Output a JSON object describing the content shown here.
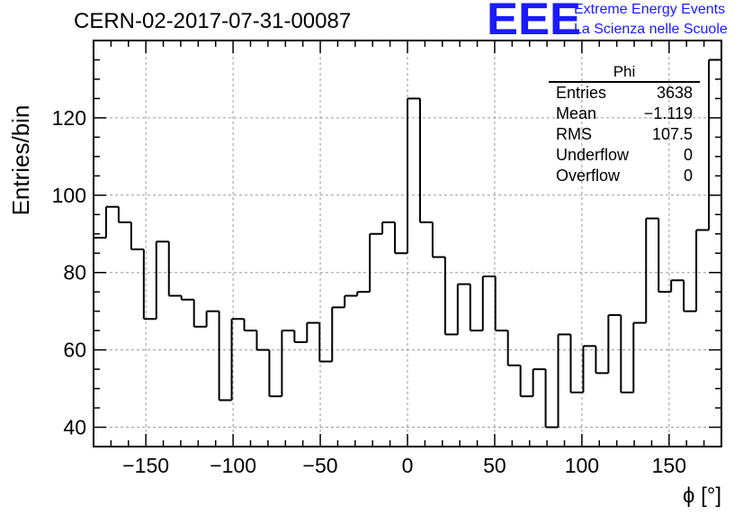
{
  "header": {
    "run_id": "CERN-02-2017-07-31-00087",
    "logo_text": "EEE",
    "logo_line1": "Extreme Energy Events",
    "logo_line2": "La Scienza nelle Scuole"
  },
  "stats": {
    "title": "Phi",
    "rows": [
      {
        "label": "Entries",
        "value": "3638"
      },
      {
        "label": "Mean",
        "value": "−1.119"
      },
      {
        "label": "RMS",
        "value": "107.5"
      },
      {
        "label": "Underflow",
        "value": "0"
      },
      {
        "label": "Overflow",
        "value": "0"
      }
    ]
  },
  "chart_data": {
    "type": "histogram",
    "xlabel": "ϕ [°]",
    "ylabel": "Entries/bin",
    "xlim": [
      -180,
      180
    ],
    "ylim": [
      35,
      140
    ],
    "bin_width": 7.2,
    "x_ticks": [
      -150,
      -100,
      -50,
      0,
      50,
      100,
      150
    ],
    "x_tick_labels": [
      "−150",
      "−100",
      "−50",
      "0",
      "50",
      "100",
      "150"
    ],
    "y_ticks": [
      40,
      60,
      80,
      100,
      120
    ],
    "y_tick_labels": [
      "40",
      "60",
      "80",
      "100",
      "120"
    ],
    "grid": true,
    "line_color": "#000000",
    "values": [
      89,
      97,
      93,
      86,
      68,
      88,
      74,
      73,
      66,
      70,
      47,
      68,
      65,
      60,
      48,
      65,
      62,
      67,
      57,
      71,
      74,
      75,
      90,
      93,
      85,
      125,
      93,
      84,
      64,
      77,
      65,
      79,
      65,
      56,
      48,
      55,
      40,
      64,
      49,
      61,
      54,
      69,
      49,
      67,
      94,
      75,
      78,
      70,
      91,
      135
    ]
  }
}
